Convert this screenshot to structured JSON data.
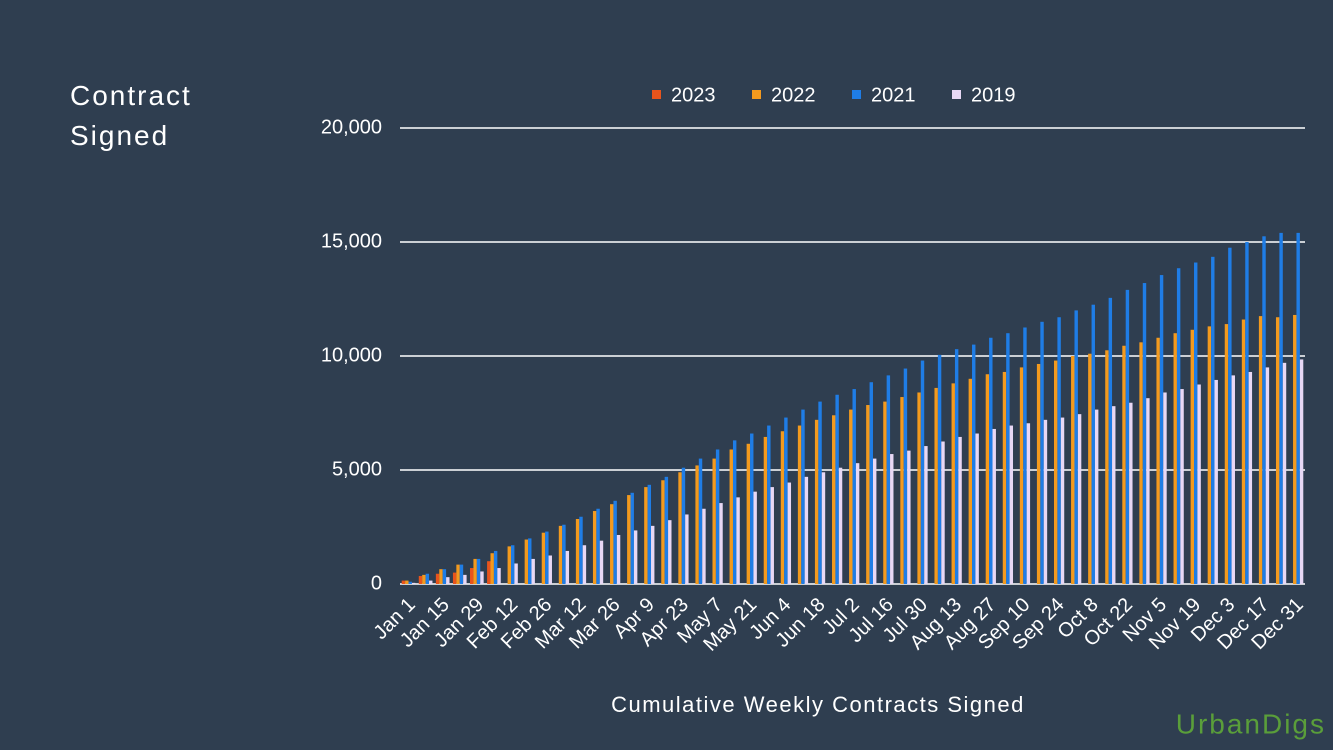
{
  "chart_data": {
    "type": "bar",
    "y_axis_label": "Contract Signed",
    "x_axis_label": "Cumulative Weekly Contracts Signed",
    "watermark": "UrbanDigs",
    "legend": "top",
    "grid": true,
    "ylim": [
      0,
      20000
    ],
    "yticks": [
      0,
      {
        "value": 5000,
        "label": "5,000"
      },
      {
        "value": 10000,
        "label": "10,000"
      },
      {
        "value": 15000,
        "label": "15,000"
      },
      {
        "value": 20000,
        "label": "20,000"
      }
    ],
    "categories": [
      "Jan 1",
      null,
      "Jan 15",
      null,
      "Jan 29",
      null,
      "Feb 12",
      null,
      "Feb 26",
      null,
      "Mar 12",
      null,
      "Mar 26",
      null,
      "Apr 9",
      null,
      "Apr 23",
      null,
      "May 7",
      null,
      "May 21",
      null,
      "Jun 4",
      null,
      "Jun 18",
      null,
      "Jul 2",
      null,
      "Jul 16",
      null,
      "Jul 30",
      null,
      "Aug 13",
      null,
      "Aug 27",
      null,
      "Sep 10",
      null,
      "Sep 24",
      null,
      "Oct 8",
      null,
      "Oct 22",
      null,
      "Nov 5",
      null,
      "Nov 19",
      null,
      "Dec 3",
      null,
      "Dec 17",
      null,
      "Dec 31"
    ],
    "series": [
      {
        "name": "2023",
        "color": "#e8541c",
        "values": [
          150,
          350,
          450,
          500,
          700,
          1000,
          null,
          null,
          null,
          null,
          null,
          null,
          null,
          null,
          null,
          null,
          null,
          null,
          null,
          null,
          null,
          null,
          null,
          null,
          null,
          null,
          null,
          null,
          null,
          null,
          null,
          null,
          null,
          null,
          null,
          null,
          null,
          null,
          null,
          null,
          null,
          null,
          null,
          null,
          null,
          null,
          null,
          null,
          null,
          null,
          null,
          null,
          null
        ]
      },
      {
        "name": "2022",
        "color": "#f39a1e",
        "values": [
          150,
          400,
          650,
          850,
          1100,
          1350,
          1650,
          1950,
          2250,
          2550,
          2850,
          3200,
          3500,
          3900,
          4250,
          4550,
          4900,
          5200,
          5500,
          5900,
          6150,
          6450,
          6700,
          6950,
          7200,
          7400,
          7650,
          7850,
          8000,
          8200,
          8400,
          8600,
          8800,
          9000,
          9200,
          9300,
          9500,
          9650,
          9800,
          10000,
          10100,
          10250,
          10450,
          10600,
          10800,
          11000,
          11150,
          11300,
          11400,
          11600,
          11750,
          11700,
          11800
        ]
      },
      {
        "name": "2021",
        "color": "#1f7de6",
        "values": [
          100,
          450,
          650,
          850,
          1100,
          1450,
          1700,
          2000,
          2300,
          2600,
          2950,
          3300,
          3650,
          4000,
          4350,
          4700,
          5100,
          5500,
          5900,
          6300,
          6600,
          6950,
          7300,
          7650,
          8000,
          8300,
          8550,
          8850,
          9150,
          9450,
          9800,
          10050,
          10300,
          10500,
          10800,
          11000,
          11250,
          11500,
          11700,
          12000,
          12250,
          12550,
          12900,
          13200,
          13550,
          13850,
          14100,
          14350,
          14750,
          15000,
          15250,
          15400,
          15400
        ]
      },
      {
        "name": "2019",
        "color": "#e8d8f5",
        "values": [
          50,
          150,
          300,
          400,
          550,
          700,
          900,
          1100,
          1250,
          1450,
          1700,
          1900,
          2150,
          2350,
          2550,
          2800,
          3050,
          3300,
          3550,
          3800,
          4050,
          4250,
          4450,
          4700,
          4900,
          5100,
          5300,
          5500,
          5700,
          5850,
          6050,
          6250,
          6450,
          6600,
          6800,
          6950,
          7050,
          7200,
          7300,
          7450,
          7650,
          7800,
          7950,
          8150,
          8400,
          8550,
          8750,
          8950,
          9150,
          9300,
          9500,
          9700,
          9850
        ]
      }
    ]
  }
}
